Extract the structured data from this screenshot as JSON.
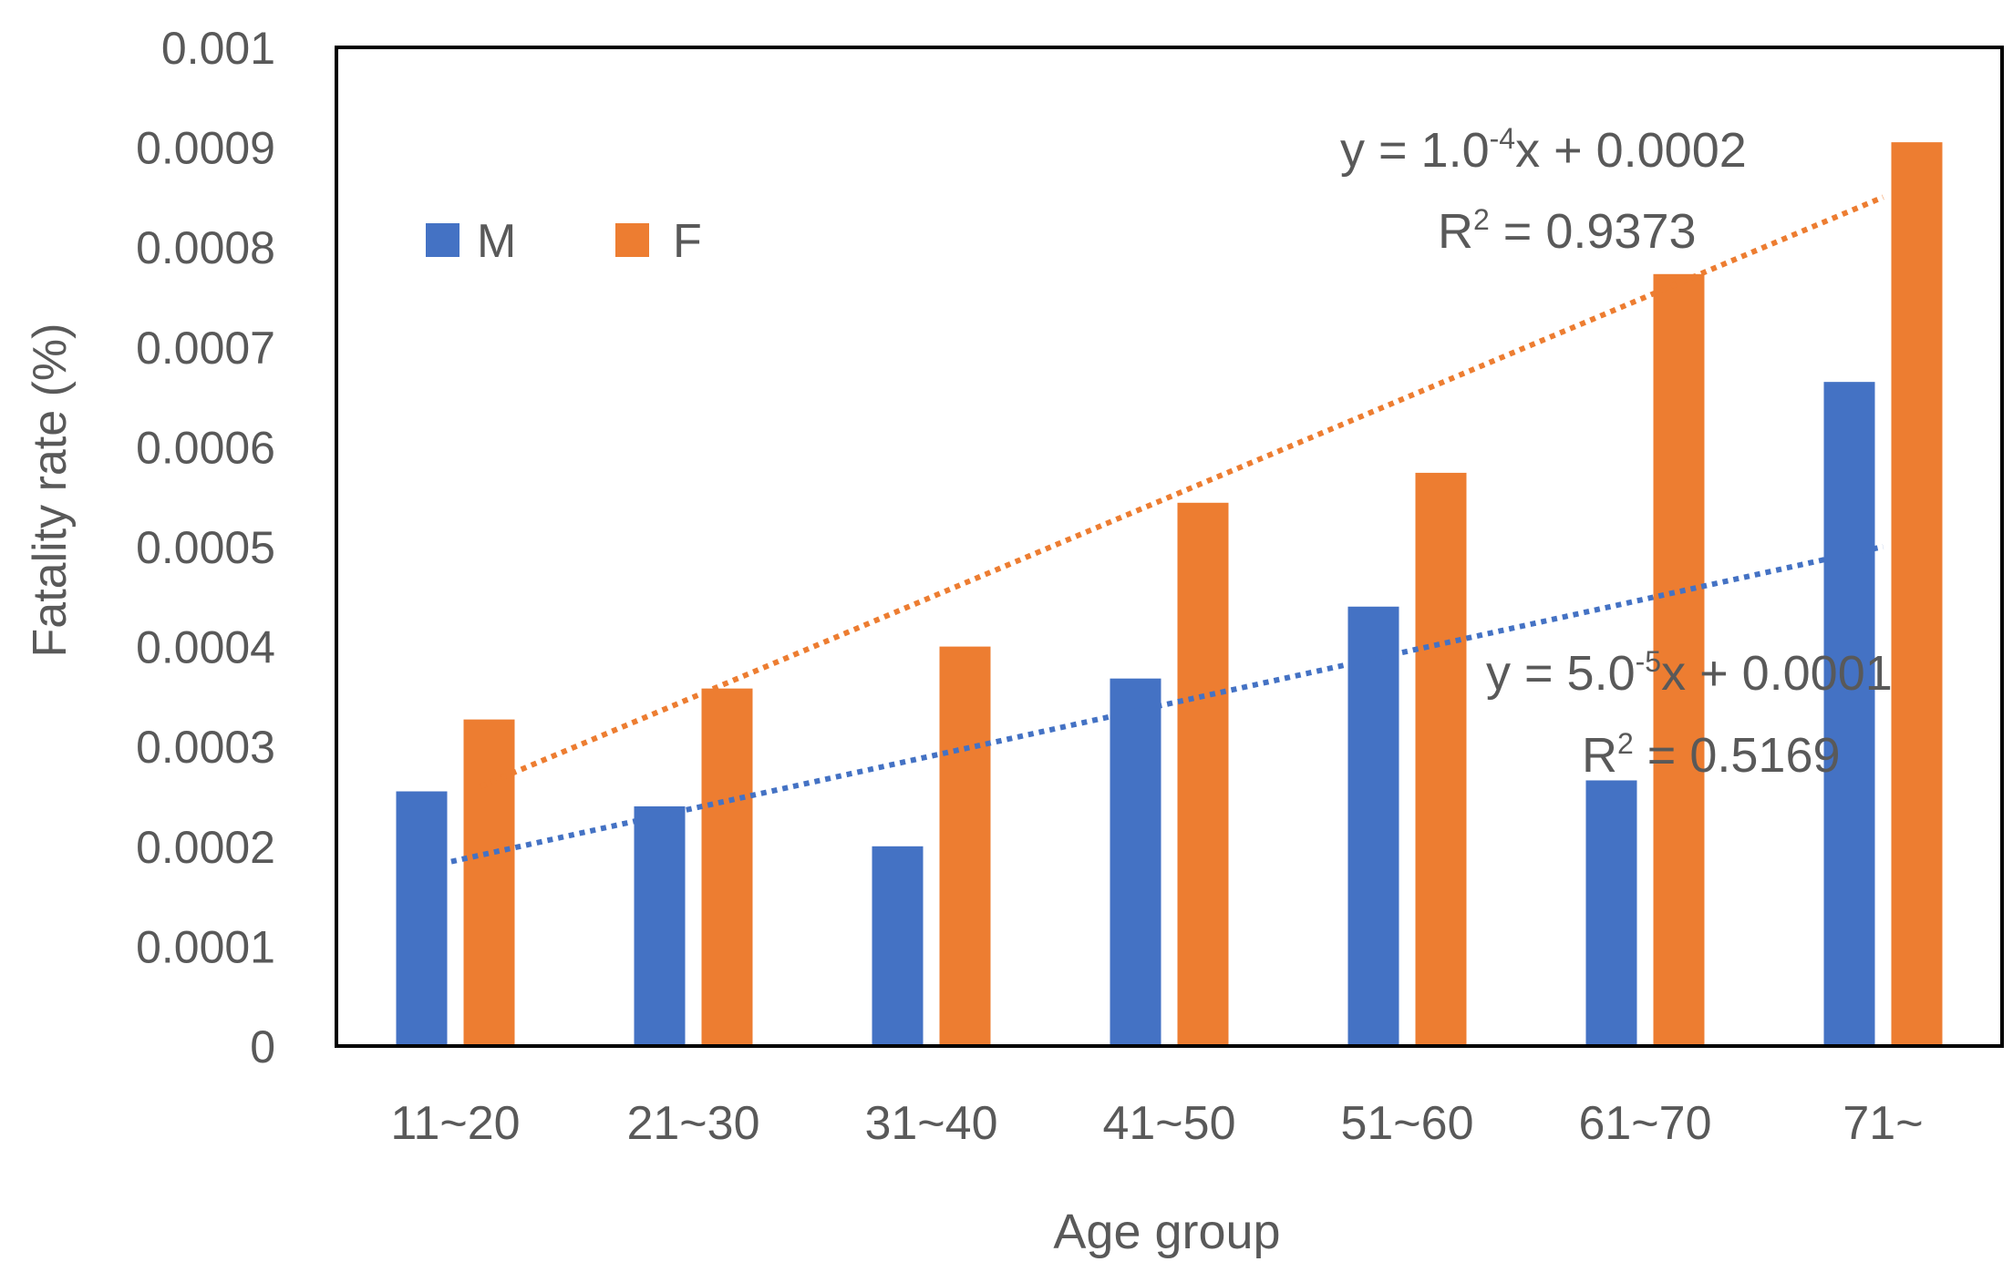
{
  "chart_data": {
    "type": "bar",
    "title": "",
    "xlabel": "Age group",
    "ylabel": "Fatality rate (%)",
    "ylim": [
      0,
      0.001
    ],
    "yticks": [
      "0",
      "0.0001",
      "0.0002",
      "0.0003",
      "0.0004",
      "0.0005",
      "0.0006",
      "0.0007",
      "0.0008",
      "0.0009",
      "0.001"
    ],
    "categories": [
      "11~20",
      "21~30",
      "31~40",
      "41~50",
      "51~60",
      "61~70",
      "71~"
    ],
    "series": [
      {
        "name": "M",
        "color": "#4472C4",
        "values": [
          0.000255,
          0.00024,
          0.0002,
          0.000368,
          0.00044,
          0.000266,
          0.000665
        ]
      },
      {
        "name": "F",
        "color": "#ED7D31",
        "values": [
          0.000327,
          0.000358,
          0.0004,
          0.000544,
          0.000574,
          0.000773,
          0.000905
        ]
      }
    ],
    "legend_position": "top-left",
    "trendlines": [
      {
        "series": "F",
        "start": 0.00026,
        "end": 0.00085,
        "equation_base": "y = 1.0",
        "equation_exp": "-4",
        "equation_tail": "x + 0.0002",
        "r2_label": "R",
        "r2_sup": "2",
        "r2_value": " = 0.9373"
      },
      {
        "series": "M",
        "start": 0.00018,
        "end": 0.0005,
        "equation_base": "y = 5.0",
        "equation_exp": "-5",
        "equation_tail": "x + 0.0001",
        "r2_label": "R",
        "r2_sup": "2",
        "r2_value": " = 0.5169"
      }
    ]
  }
}
